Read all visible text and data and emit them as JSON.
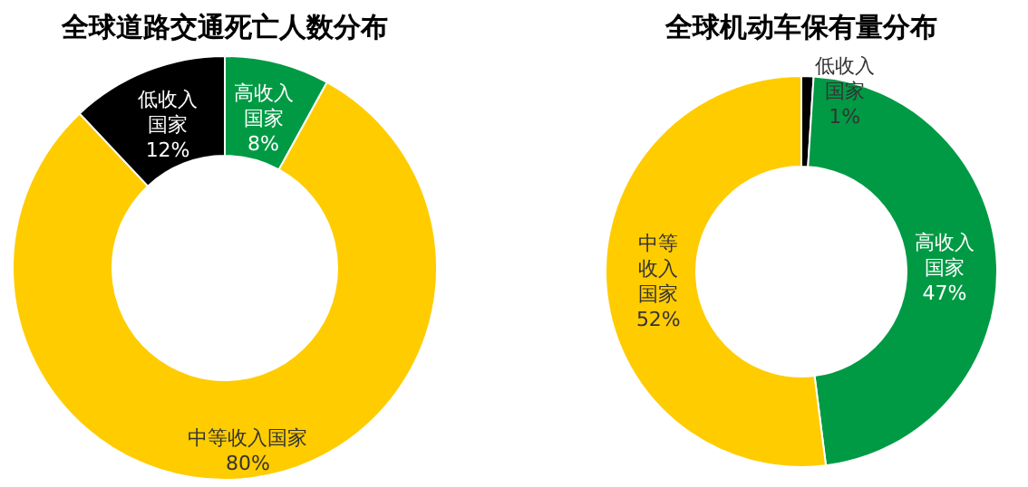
{
  "chart_data": [
    {
      "type": "donut",
      "title": "全球道路交通死亡人数分布",
      "categories": [
        "高收入国家",
        "中等收入国家",
        "低收入国家"
      ],
      "values": [
        8,
        80,
        12
      ],
      "value_labels": [
        "8%",
        "80%",
        "12%"
      ],
      "colors": [
        "#009a44",
        "#ffcc00",
        "#000000"
      ]
    },
    {
      "type": "donut",
      "title": "全球机动车保有量分布",
      "categories": [
        "低收入国家",
        "高收入国家",
        "中等收入国家"
      ],
      "values": [
        1,
        47,
        52
      ],
      "value_labels": [
        "1%",
        "47%",
        "52%"
      ],
      "colors": [
        "#000000",
        "#009a44",
        "#ffcc00"
      ]
    }
  ]
}
